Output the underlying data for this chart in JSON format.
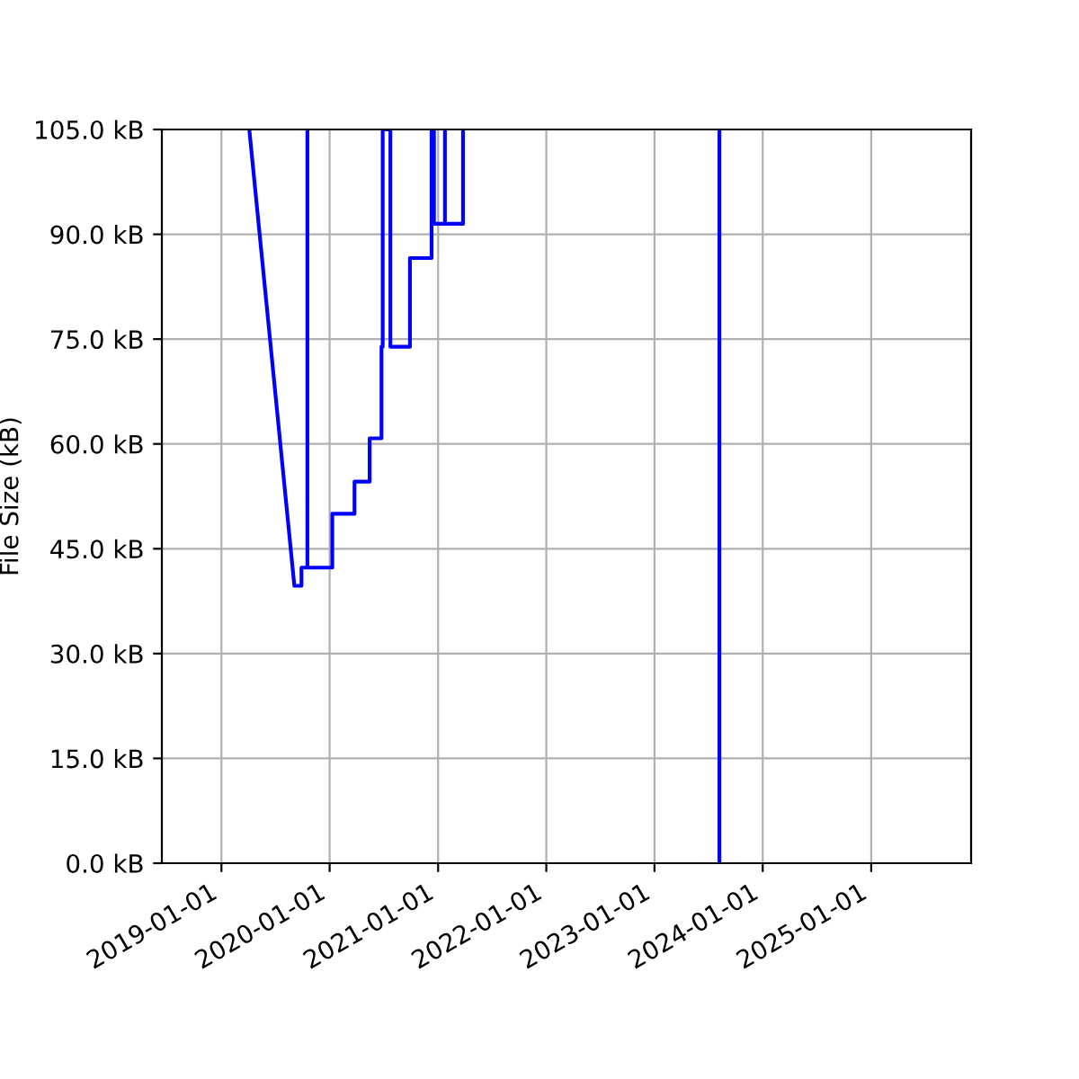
{
  "chart_data": {
    "type": "line",
    "ylabel": "File Size (kB)",
    "x": [
      "2019-04-05",
      "2019-09-04",
      "2019-09-28",
      "2019-09-28",
      "2019-10-18",
      "2019-10-18",
      "2019-10-18",
      "2020-01-10",
      "2020-01-10",
      "2020-03-25",
      "2020-03-25",
      "2020-05-15",
      "2020-05-15",
      "2020-06-24",
      "2020-06-24",
      "2020-06-28",
      "2020-06-28",
      "2020-07-24",
      "2020-07-24",
      "2020-09-28",
      "2020-09-28",
      "2020-12-10",
      "2020-12-10",
      "2020-12-18",
      "2020-12-18",
      "2021-01-24",
      "2021-01-24",
      "2021-01-24",
      "2021-03-26",
      "2021-03-26"
    ],
    "series": [
      {
        "color": "#0000ff",
        "values": [
          105,
          39.7,
          39.7,
          42.3,
          42.3,
          105,
          42.3,
          42.3,
          50,
          50,
          54.6,
          54.6,
          60.8,
          60.8,
          73.9,
          73.9,
          105,
          105,
          73.9,
          73.9,
          86.6,
          86.6,
          105,
          105,
          91.5,
          91.5,
          105,
          91.5,
          91.5,
          105
        ]
      },
      {
        "color": "#0000ff",
        "x": [
          "2023-08-08",
          "2023-08-08"
        ],
        "values": [
          105,
          0
        ]
      }
    ],
    "xlim": [
      "2018-06-14",
      "2025-12-04"
    ],
    "xticks": [
      "2019-01-01",
      "2020-01-01",
      "2021-01-01",
      "2022-01-01",
      "2023-01-01",
      "2024-01-01",
      "2025-01-01"
    ],
    "ylim": [
      0,
      105
    ],
    "yticks": [
      {
        "value": 0,
        "label": "0.0 kB"
      },
      {
        "value": 15,
        "label": "15.0 kB"
      },
      {
        "value": 30,
        "label": "30.0 kB"
      },
      {
        "value": 45,
        "label": "45.0 kB"
      },
      {
        "value": 60,
        "label": "60.0 kB"
      },
      {
        "value": 75,
        "label": "75.0 kB"
      },
      {
        "value": 90,
        "label": "90.0 kB"
      },
      {
        "value": 105,
        "label": "105.0 kB"
      }
    ],
    "grid": true
  }
}
